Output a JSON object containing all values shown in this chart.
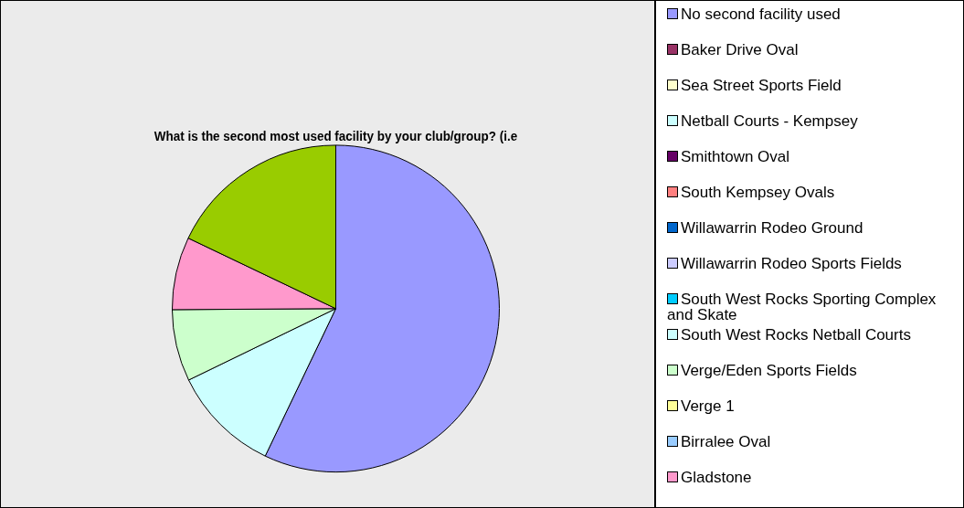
{
  "chart_data": {
    "type": "pie",
    "title": "What is the second most used facility by your club/group? (i.e",
    "categories": [
      "No second facility used",
      "Baker Drive Oval",
      "Sea Street Sports Field",
      "Netball Courts - Kempsey",
      "Smithtown Oval",
      "South Kempsey Ovals",
      "Willawarrin Rodeo Ground",
      "Willawarrin Rodeo Sports Fields",
      "South West Rocks Sporting Complex and Skate",
      "South West Rocks Netball Courts",
      "Verge/Eden Sports Fields",
      "Verge 1",
      "Birralee Oval",
      "Gladstone",
      null
    ],
    "values": [
      57.1,
      0,
      0,
      10.7,
      0,
      0,
      0,
      0,
      0,
      0,
      7.1,
      0,
      0,
      7.2,
      17.9
    ],
    "colors": [
      "#9999ff",
      "#993366",
      "#ffffcc",
      "#ccffff",
      "#660066",
      "#ff8080",
      "#0066cc",
      "#ccccff",
      "#00ccff",
      "#ccffff",
      "#ccffcc",
      "#ffff99",
      "#99ccff",
      "#ff99cc",
      "#99cc00"
    ],
    "legend": "right"
  }
}
